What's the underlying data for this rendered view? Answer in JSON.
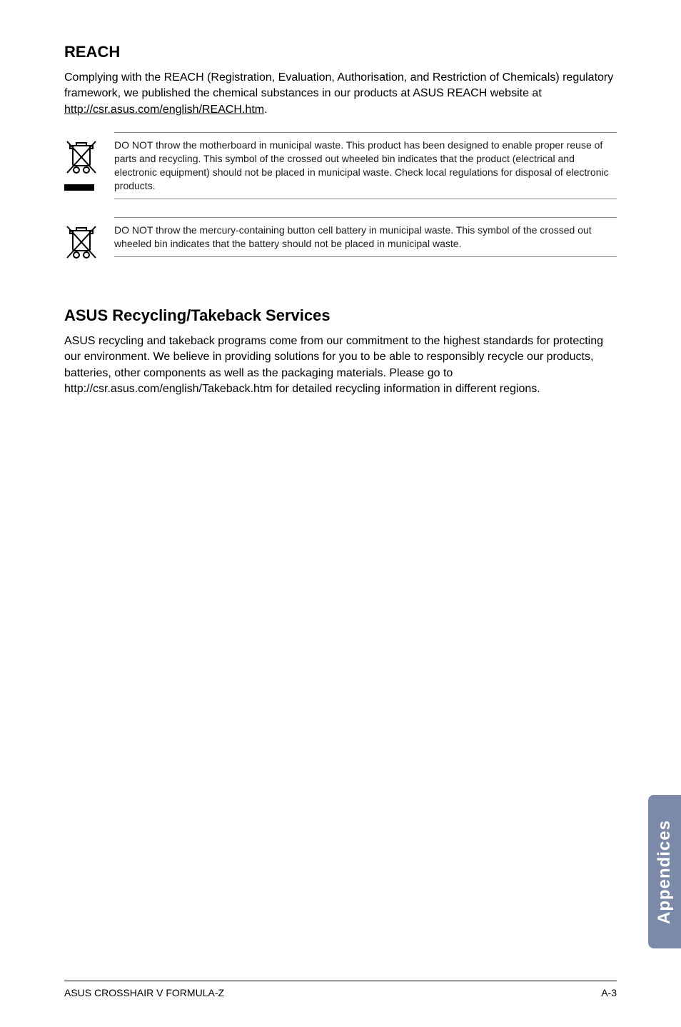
{
  "reach": {
    "title": "REACH",
    "body_pre": "Complying with the REACH (Registration, Evaluation, Authorisation, and Restriction of Chemicals) regulatory framework, we published the chemical substances in our products at ASUS REACH website at ",
    "link": "http://csr.asus.com/english/REACH.htm",
    "body_post": "."
  },
  "warnings": [
    {
      "text": "DO NOT throw the motherboard in municipal waste. This product has been designed to enable proper reuse of parts and recycling. This symbol of the crossed out wheeled bin indicates that the product (electrical and electronic equipment) should not be placed in municipal waste. Check local regulations for disposal of electronic products.",
      "has_bar": true
    },
    {
      "text": "DO NOT throw the mercury-containing button cell battery in municipal waste. This symbol of the crossed out wheeled bin indicates that the battery should not be placed in municipal waste.",
      "has_bar": false
    }
  ],
  "recycling": {
    "title": "ASUS Recycling/Takeback Services",
    "body": "ASUS recycling and takeback programs come from our commitment to the highest standards for protecting our environment. We believe in providing solutions for you to be able to responsibly recycle our products, batteries, other components as well as the packaging materials. Please go to http://csr.asus.com/english/Takeback.htm for detailed recycling information in different regions."
  },
  "side_tab": "Appendices",
  "footer": {
    "left": "ASUS CROSSHAIR V FORMULA-Z",
    "right": "A-3"
  },
  "icon": {
    "stroke": "#000000",
    "stroke_width": 2,
    "bar_color": "#000000"
  },
  "colors": {
    "side_tab_bg": "#7a8aa8",
    "side_tab_text": "#ffffff"
  }
}
